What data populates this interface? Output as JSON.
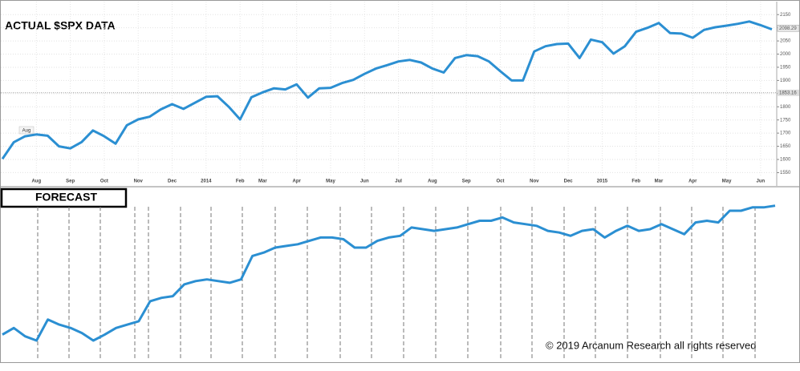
{
  "chart_data": [
    {
      "type": "line",
      "title": "ACTUAL $SPX DATA",
      "color": "#2b8fd2",
      "grid": true,
      "marker_label": "Aug",
      "current_price": 2098.29,
      "reference_price": 1853.16,
      "ylim": [
        1530,
        2175
      ],
      "yticks": [
        1550,
        1600,
        1650,
        1700,
        1750,
        1800,
        1850,
        1900,
        1950,
        2000,
        2050,
        2100,
        2150
      ],
      "categories": [
        null,
        null,
        null,
        "Aug",
        null,
        null,
        "Sep",
        null,
        null,
        "Oct",
        null,
        null,
        "Nov",
        null,
        null,
        "Dec",
        null,
        null,
        "2014",
        null,
        null,
        "Feb",
        null,
        "Mar",
        null,
        null,
        "Apr",
        null,
        null,
        "May",
        null,
        null,
        "Jun",
        null,
        null,
        "Jul",
        null,
        null,
        "Aug",
        null,
        null,
        "Sep",
        null,
        null,
        "Oct",
        null,
        null,
        "Nov",
        null,
        null,
        "Dec",
        null,
        null,
        "2015",
        null,
        null,
        "Feb",
        null,
        "Mar",
        null,
        null,
        "Apr",
        null,
        null,
        "May",
        null,
        null,
        "Jun",
        null
      ],
      "values": [
        1602,
        1665,
        1688,
        1695,
        1690,
        1650,
        1642,
        1666,
        1710,
        1688,
        1660,
        1730,
        1752,
        1762,
        1790,
        1810,
        1792,
        1815,
        1838,
        1840,
        1800,
        1752,
        1836,
        1855,
        1870,
        1866,
        1885,
        1835,
        1870,
        1872,
        1890,
        1902,
        1925,
        1945,
        1958,
        1972,
        1978,
        1968,
        1945,
        1930,
        1985,
        1996,
        1992,
        1972,
        1935,
        1900,
        1900,
        2010,
        2030,
        2038,
        2040,
        1985,
        2055,
        2045,
        2002,
        2030,
        2085,
        2100,
        2118,
        2080,
        2078,
        2062,
        2092,
        2102,
        2108,
        2115,
        2124,
        2110,
        2094
      ]
    },
    {
      "type": "line",
      "title": "FORECAST",
      "color": "#2b8fd2",
      "ylim": [
        0,
        100
      ],
      "values": [
        15,
        19,
        14,
        11.5,
        24,
        21,
        19,
        16,
        11.5,
        15,
        19,
        21,
        23,
        35,
        37,
        38,
        45,
        47,
        48,
        47,
        46,
        48,
        62,
        64,
        67,
        68,
        69,
        71,
        73,
        73,
        72,
        67,
        67,
        71,
        73,
        74,
        79,
        78,
        77,
        78,
        79,
        81,
        83,
        83,
        85,
        82,
        81,
        80,
        77,
        76,
        74,
        77,
        78,
        73,
        77,
        80,
        77,
        78,
        81,
        78,
        75,
        82,
        83,
        82,
        89,
        89,
        91,
        91,
        92
      ]
    }
  ],
  "footer": "© 2019 Arcanum Research all rights reserved"
}
